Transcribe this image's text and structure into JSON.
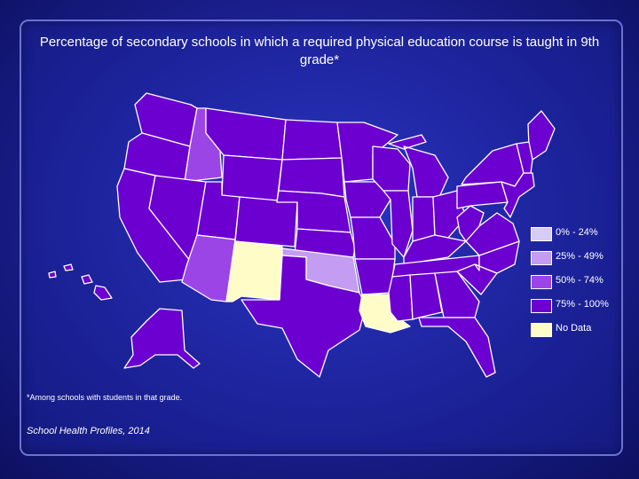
{
  "title": "Percentage of secondary schools in which a required physical education course is taught in 9th grade*",
  "footnote": "*Among schools with students in that grade.",
  "source": "School Health Profiles, 2014",
  "colors": {
    "c0_24": "#d6ccf6",
    "c25_49": "#c49cf2",
    "c50_74": "#9c45e6",
    "c75_100": "#6b00d0",
    "nodata": "#fffcc8",
    "border": "#ffffff"
  },
  "legend": [
    {
      "label": "0% - 24%",
      "color": "#d6ccf6"
    },
    {
      "label": "25% - 49%",
      "color": "#c49cf2"
    },
    {
      "label": "50% - 74%",
      "color": "#9c45e6"
    },
    {
      "label": "75% - 100%",
      "color": "#6b00d0"
    },
    {
      "label": "No Data",
      "color": "#fffcc8"
    }
  ],
  "state_categories": {
    "WA": "75-100",
    "OR": "75-100",
    "CA": "75-100",
    "ID": "50-74",
    "NV": "75-100",
    "MT": "75-100",
    "WY": "75-100",
    "UT": "75-100",
    "AZ": "50-74",
    "CO": "75-100",
    "NM": "nodata",
    "ND": "75-100",
    "SD": "75-100",
    "NE": "75-100",
    "KS": "75-100",
    "OK": "25-49",
    "TX": "75-100",
    "MN": "75-100",
    "IA": "75-100",
    "MO": "75-100",
    "AR": "75-100",
    "LA": "nodata",
    "WI": "75-100",
    "IL": "75-100",
    "MI": "75-100",
    "IN": "75-100",
    "OH": "75-100",
    "KY": "75-100",
    "TN": "75-100",
    "MS": "75-100",
    "AL": "75-100",
    "GA": "75-100",
    "FL": "75-100",
    "SC": "75-100",
    "NC": "75-100",
    "VA": "75-100",
    "WV": "75-100",
    "PA": "75-100",
    "NY": "75-100",
    "ME": "75-100",
    "NE_states": "75-100",
    "AK": "75-100",
    "HI": "75-100"
  }
}
